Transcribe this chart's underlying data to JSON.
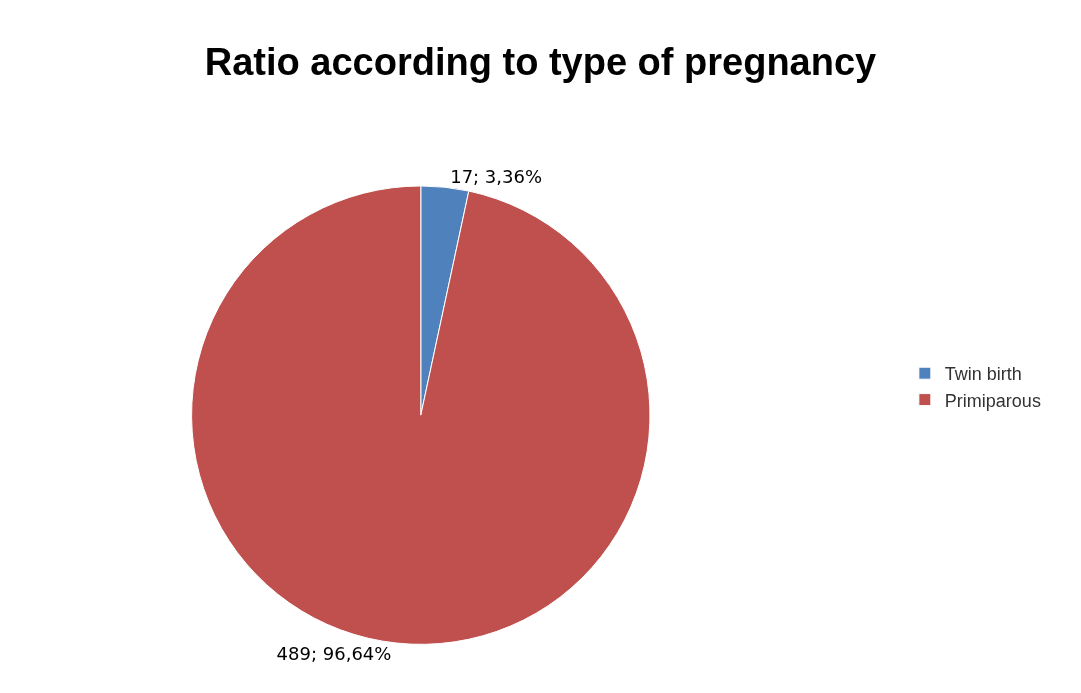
{
  "chart_data": {
    "type": "pie",
    "title": "Ratio according to type of pregnancy",
    "categories": [
      "Twin birth",
      "Primiparous"
    ],
    "values": [
      17,
      489
    ],
    "colors": [
      "#4f81bd",
      "#c0504d"
    ],
    "value_labels": [
      "17; 3,36%",
      "489; 96,64%"
    ],
    "legend": "right"
  }
}
